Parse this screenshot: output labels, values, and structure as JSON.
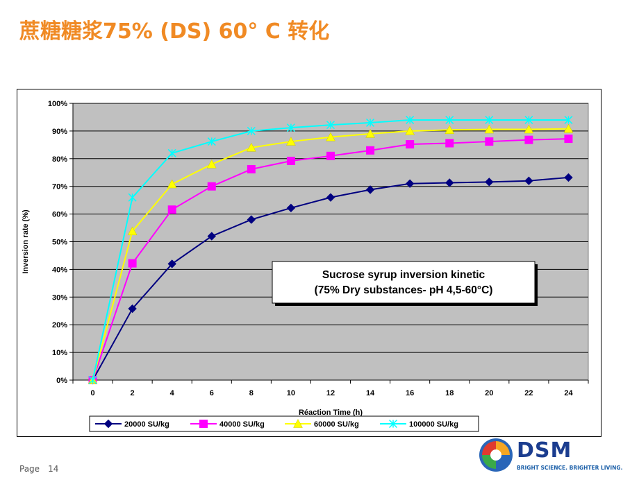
{
  "slide": {
    "title": "蔗糖糖浆75% (DS) 60° C 转化",
    "page_label": "Page",
    "page_number": "14"
  },
  "logo": {
    "name": "DSM",
    "tagline": "BRIGHT SCIENCE. BRIGHTER LIVING."
  },
  "colors": {
    "title": "#f08a24",
    "plot_bg": "#c0c0c0",
    "series": [
      "#000080",
      "#ff00ff",
      "#ffff00",
      "#00ffff"
    ]
  },
  "chart_data": {
    "type": "line",
    "title": "",
    "xlabel": "Réaction Time (h)",
    "ylabel": "Inversion rate (%)",
    "x": [
      0,
      2,
      4,
      6,
      8,
      10,
      12,
      14,
      16,
      18,
      20,
      22,
      24
    ],
    "xlim": [
      0,
      24
    ],
    "ylim": [
      0,
      100
    ],
    "ytick_labels": [
      "0%",
      "10%",
      "20%",
      "30%",
      "40%",
      "50%",
      "60%",
      "70%",
      "80%",
      "90%",
      "100%"
    ],
    "xtick_labels": [
      "0",
      "2",
      "4",
      "6",
      "8",
      "10",
      "12",
      "14",
      "16",
      "18",
      "20",
      "22",
      "24"
    ],
    "grid": true,
    "legend_position": "bottom",
    "annotation": [
      "Sucrose syrup inversion kinetic",
      "(75% Dry substances- pH 4,5-60°C)"
    ],
    "series": [
      {
        "name": "20000 SU/kg",
        "marker": "diamond",
        "values": [
          0,
          25.8,
          42,
          52,
          58,
          62.2,
          66,
          68.8,
          71,
          71.3,
          71.6,
          72,
          73.2
        ]
      },
      {
        "name": "40000 SU/kg",
        "marker": "square",
        "values": [
          0,
          42.2,
          61.6,
          70,
          76.2,
          79.2,
          81,
          83,
          85.2,
          85.6,
          86.2,
          86.8,
          87.2
        ]
      },
      {
        "name": "60000 SU/kg",
        "marker": "triangle",
        "values": [
          0,
          53.8,
          70.8,
          78,
          84,
          86.2,
          87.8,
          89,
          90,
          90.4,
          90.6,
          90.6,
          90.8
        ]
      },
      {
        "name": "100000 SU/kg",
        "marker": "x",
        "values": [
          0,
          66,
          82,
          86.2,
          90,
          91.2,
          92.2,
          93,
          94,
          94,
          94,
          94,
          94
        ]
      }
    ]
  }
}
